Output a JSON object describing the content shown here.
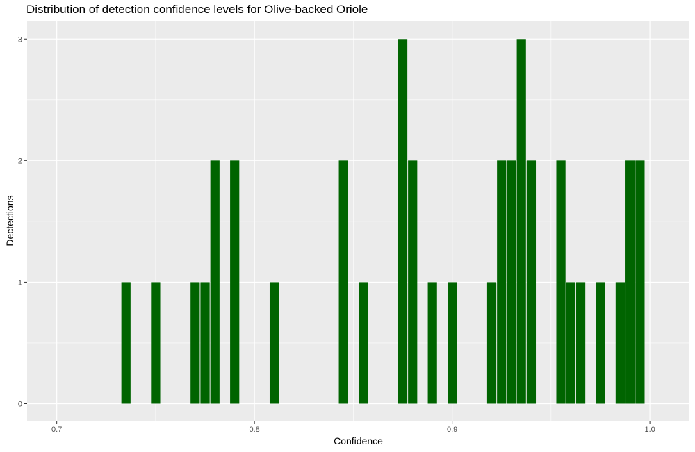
{
  "chart_data": {
    "type": "bar",
    "title": "Distribution of detection confidence levels for Olive-backed Oriole",
    "xlabel": "Confidence",
    "ylabel": "Dectections",
    "xlim": [
      0.685,
      1.02
    ],
    "ylim": [
      -0.14,
      3.15
    ],
    "xticks": [
      0.7,
      0.8,
      0.9,
      1.0
    ],
    "xtick_labels": [
      "0.7",
      "0.8",
      "0.9",
      "1.0"
    ],
    "yticks": [
      0,
      1,
      2,
      3
    ],
    "ytick_labels": [
      "0",
      "1",
      "2",
      "3"
    ],
    "bin_width": 0.005,
    "grid": true,
    "bar_color": "#006400",
    "panel_color": "#EBEBEB",
    "bins": [
      {
        "x": 0.735,
        "count": 1
      },
      {
        "x": 0.75,
        "count": 1
      },
      {
        "x": 0.77,
        "count": 1
      },
      {
        "x": 0.775,
        "count": 1
      },
      {
        "x": 0.78,
        "count": 2
      },
      {
        "x": 0.79,
        "count": 2
      },
      {
        "x": 0.81,
        "count": 1
      },
      {
        "x": 0.845,
        "count": 2
      },
      {
        "x": 0.855,
        "count": 1
      },
      {
        "x": 0.875,
        "count": 3
      },
      {
        "x": 0.88,
        "count": 2
      },
      {
        "x": 0.89,
        "count": 1
      },
      {
        "x": 0.9,
        "count": 1
      },
      {
        "x": 0.92,
        "count": 1
      },
      {
        "x": 0.925,
        "count": 2
      },
      {
        "x": 0.93,
        "count": 2
      },
      {
        "x": 0.935,
        "count": 3
      },
      {
        "x": 0.94,
        "count": 2
      },
      {
        "x": 0.955,
        "count": 2
      },
      {
        "x": 0.96,
        "count": 1
      },
      {
        "x": 0.965,
        "count": 1
      },
      {
        "x": 0.975,
        "count": 1
      },
      {
        "x": 0.985,
        "count": 1
      },
      {
        "x": 0.99,
        "count": 2
      },
      {
        "x": 0.995,
        "count": 2
      }
    ]
  }
}
